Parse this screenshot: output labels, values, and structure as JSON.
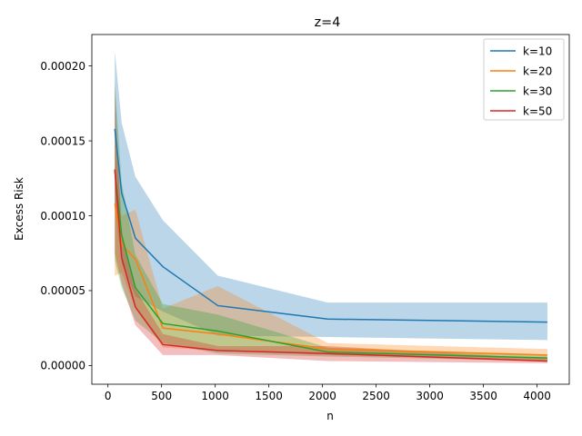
{
  "chart_data": {
    "type": "line",
    "title": "z=4",
    "xlabel": "n",
    "ylabel": "Excess Risk",
    "xlim": [
      -150,
      4300
    ],
    "ylim": [
      -1.25e-05,
      0.000221
    ],
    "xticks": [
      0,
      500,
      1000,
      1500,
      2000,
      2500,
      3000,
      3500,
      4000
    ],
    "xtick_labels": [
      "0",
      "500",
      "1000",
      "1500",
      "2000",
      "2500",
      "3000",
      "3500",
      "4000"
    ],
    "yticks": [
      0,
      5e-05,
      0.0001,
      0.00015,
      0.0002
    ],
    "ytick_labels": [
      "0.00000",
      "0.00005",
      "0.00010",
      "0.00015",
      "0.00020"
    ],
    "grid": false,
    "legend_position": "top-right",
    "x": [
      64,
      128,
      256,
      512,
      1024,
      2048,
      4096
    ],
    "series": [
      {
        "name": "k=10",
        "color": "#1f77b4",
        "values": [
          0.000158,
          0.000115,
          8.5e-05,
          6.6e-05,
          4e-05,
          3.1e-05,
          2.9e-05
        ],
        "lower": [
          0.000106,
          6.8e-05,
          4.6e-05,
          3.6e-05,
          2e-05,
          1.9e-05,
          1.7e-05
        ],
        "upper": [
          0.00021,
          0.000162,
          0.000126,
          9.7e-05,
          6e-05,
          4.2e-05,
          4.2e-05
        ]
      },
      {
        "name": "k=20",
        "color": "#ff7f0e",
        "values": [
          0.000108,
          8.1e-05,
          7.1e-05,
          2.5e-05,
          2.1e-05,
          1.1e-05,
          7e-06
        ],
        "lower": [
          6e-05,
          6.2e-05,
          3.8e-05,
          1.2e-05,
          1e-05,
          7e-06,
          3e-06
        ],
        "upper": [
          0.000156,
          0.0001,
          0.000104,
          3.8e-05,
          5.3e-05,
          1.5e-05,
          1.1e-05
        ]
      },
      {
        "name": "k=30",
        "color": "#2ca02c",
        "values": [
          0.00013,
          8.7e-05,
          5.2e-05,
          2.8e-05,
          2.3e-05,
          9e-06,
          5e-06
        ],
        "lower": [
          7e-05,
          5.2e-05,
          3e-05,
          1.5e-05,
          8e-06,
          6e-06,
          3e-06
        ],
        "upper": [
          0.00019,
          0.000122,
          7.4e-05,
          4.1e-05,
          3.4e-05,
          1.2e-05,
          7e-06
        ]
      },
      {
        "name": "k=50",
        "color": "#d62728",
        "values": [
          0.000131,
          7.2e-05,
          3.9e-05,
          1.4e-05,
          1e-05,
          8e-06,
          3e-06
        ],
        "lower": [
          7.5e-05,
          5.5e-05,
          2.7e-05,
          7e-06,
          7e-06,
          3e-06,
          1.5e-06
        ],
        "upper": [
          0.000187,
          8.9e-05,
          5.1e-05,
          2.1e-05,
          1.3e-05,
          1.3e-05,
          4.5e-06
        ]
      }
    ]
  }
}
